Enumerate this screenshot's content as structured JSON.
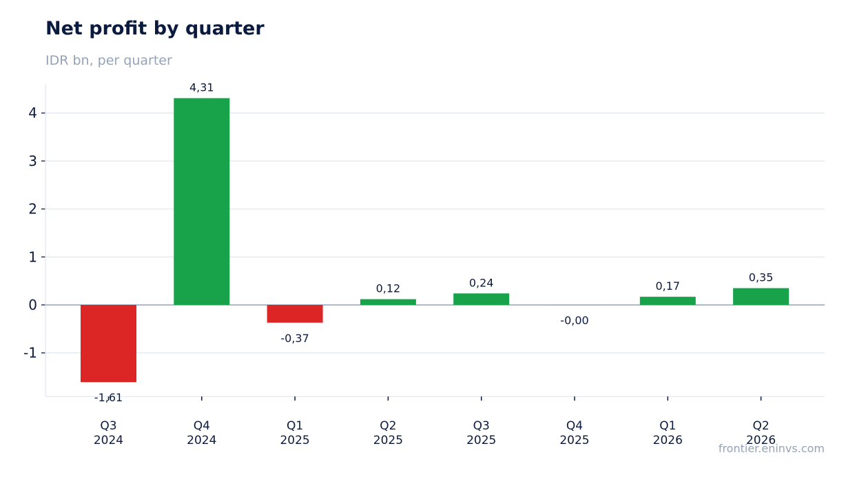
{
  "header": {
    "title": "Net profit by quarter",
    "subtitle": "IDR bn, per quarter"
  },
  "footer": {
    "source": "frontier.eninvs.com"
  },
  "colors": {
    "positive": "#18a34a",
    "negative": "#dc2626",
    "grid": "#e2e8f0",
    "zero_line": "#94a3b8",
    "text": "#0b1a3f"
  },
  "chart_data": {
    "type": "bar",
    "title": "Net profit by quarter",
    "subtitle": "IDR bn, per quarter",
    "xlabel": "",
    "ylabel": "",
    "categories": [
      [
        "Q3",
        "2024"
      ],
      [
        "Q4",
        "2024"
      ],
      [
        "Q1",
        "2025"
      ],
      [
        "Q2",
        "2025"
      ],
      [
        "Q3",
        "2025"
      ],
      [
        "Q4",
        "2025"
      ],
      [
        "Q1",
        "2026"
      ],
      [
        "Q2",
        "2026"
      ]
    ],
    "values": [
      -1.61,
      4.31,
      -0.37,
      0.12,
      0.24,
      -0.001,
      0.17,
      0.35
    ],
    "data_labels": [
      "-1,61",
      "4,31",
      "-0,37",
      "0,12",
      "0,24",
      "-0,00",
      "0,17",
      "0,35"
    ],
    "y_ticks": [
      -1,
      0,
      1,
      2,
      3,
      4
    ],
    "ylim": [
      -1.9,
      4.6
    ],
    "grid": "horizontal",
    "legend": "none"
  }
}
